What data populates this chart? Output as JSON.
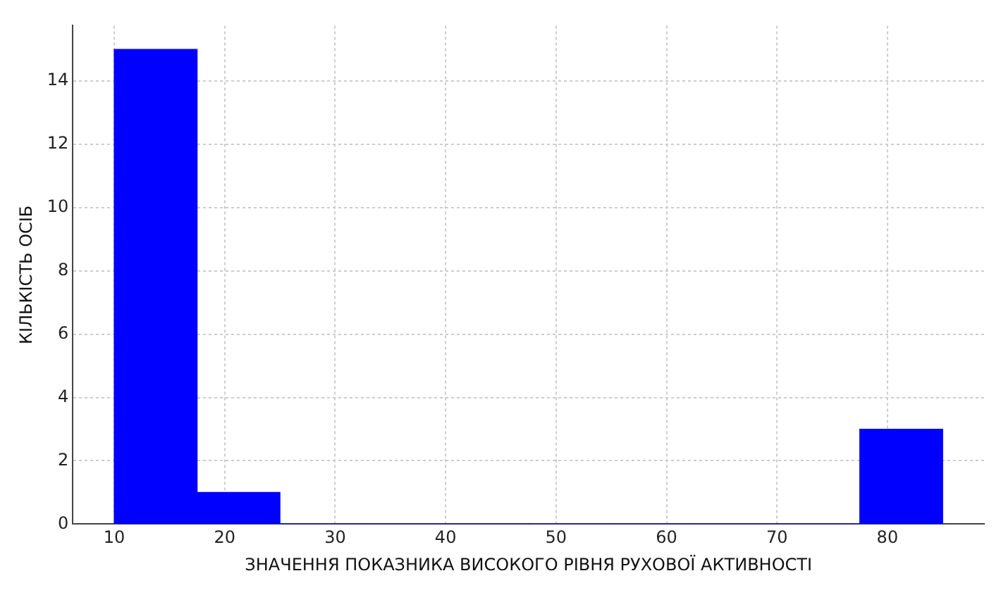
{
  "chart_data": {
    "type": "histogram",
    "xlabel": "ЗНАЧЕННЯ ПОКАЗНИКА ВИСОКОГО РІВНЯ РУХОВОЇ АКТИВНОСТІ",
    "ylabel": "КІЛЬКІСТЬ ОСІБ",
    "bins": [
      10,
      17.5,
      25,
      32.5,
      40,
      47.5,
      55,
      62.5,
      70,
      77.5,
      85
    ],
    "values": [
      15,
      1,
      0,
      0,
      0,
      0,
      0,
      0,
      0,
      3
    ],
    "color": "#0000ff",
    "xlim": [
      6.25,
      88.75
    ],
    "xticks": [
      10,
      20,
      30,
      40,
      50,
      60,
      70,
      80
    ],
    "ylim": [
      0,
      15.75
    ],
    "yticks": [
      0,
      2,
      4,
      6,
      8,
      10,
      12,
      14
    ],
    "grid": true
  }
}
